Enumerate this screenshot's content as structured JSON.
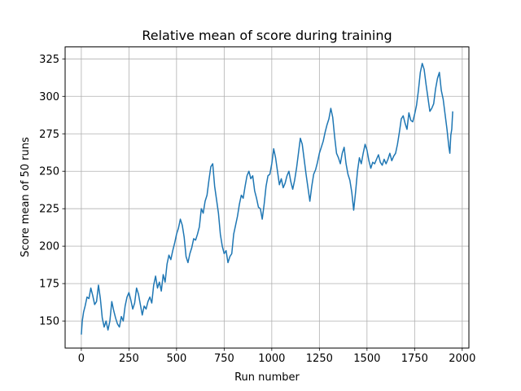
{
  "chart_data": {
    "type": "line",
    "title": "Relative mean of score during training",
    "xlabel": "Run number",
    "ylabel": "Score mean of 50 runs",
    "xlim": [
      -85,
      2035
    ],
    "ylim": [
      132,
      333
    ],
    "xticks": [
      0,
      250,
      500,
      750,
      1000,
      1250,
      1500,
      1750,
      2000
    ],
    "yticks": [
      150,
      175,
      200,
      225,
      250,
      275,
      300,
      325
    ],
    "grid": true,
    "colors": {
      "line": "#1f77b4",
      "grid": "#b0b0b0",
      "axis": "#000000"
    },
    "series": [
      {
        "points": [
          [
            0,
            141
          ],
          [
            5,
            150
          ],
          [
            12,
            156
          ],
          [
            20,
            160
          ],
          [
            30,
            166
          ],
          [
            40,
            165
          ],
          [
            50,
            172
          ],
          [
            60,
            167
          ],
          [
            70,
            161
          ],
          [
            80,
            163
          ],
          [
            90,
            174
          ],
          [
            100,
            165
          ],
          [
            110,
            152
          ],
          [
            120,
            146
          ],
          [
            130,
            150
          ],
          [
            140,
            144
          ],
          [
            150,
            150
          ],
          [
            160,
            163
          ],
          [
            170,
            157
          ],
          [
            180,
            152
          ],
          [
            190,
            148
          ],
          [
            200,
            146
          ],
          [
            210,
            153
          ],
          [
            220,
            150
          ],
          [
            230,
            160
          ],
          [
            240,
            166
          ],
          [
            250,
            169
          ],
          [
            260,
            164
          ],
          [
            270,
            158
          ],
          [
            280,
            162
          ],
          [
            290,
            172
          ],
          [
            300,
            168
          ],
          [
            310,
            161
          ],
          [
            320,
            154
          ],
          [
            330,
            160
          ],
          [
            340,
            158
          ],
          [
            350,
            163
          ],
          [
            360,
            166
          ],
          [
            370,
            162
          ],
          [
            380,
            174
          ],
          [
            390,
            180
          ],
          [
            400,
            172
          ],
          [
            410,
            176
          ],
          [
            420,
            170
          ],
          [
            430,
            181
          ],
          [
            440,
            176
          ],
          [
            450,
            188
          ],
          [
            460,
            194
          ],
          [
            470,
            191
          ],
          [
            480,
            197
          ],
          [
            490,
            202
          ],
          [
            500,
            208
          ],
          [
            510,
            212
          ],
          [
            520,
            218
          ],
          [
            530,
            214
          ],
          [
            540,
            206
          ],
          [
            550,
            193
          ],
          [
            560,
            189
          ],
          [
            570,
            195
          ],
          [
            580,
            199
          ],
          [
            590,
            205
          ],
          [
            600,
            204
          ],
          [
            610,
            208
          ],
          [
            620,
            213
          ],
          [
            630,
            225
          ],
          [
            640,
            222
          ],
          [
            650,
            230
          ],
          [
            660,
            234
          ],
          [
            670,
            244
          ],
          [
            680,
            253
          ],
          [
            690,
            255
          ],
          [
            700,
            240
          ],
          [
            710,
            231
          ],
          [
            720,
            222
          ],
          [
            730,
            208
          ],
          [
            740,
            200
          ],
          [
            750,
            195
          ],
          [
            760,
            197
          ],
          [
            770,
            189
          ],
          [
            780,
            193
          ],
          [
            790,
            195
          ],
          [
            800,
            208
          ],
          [
            810,
            214
          ],
          [
            820,
            220
          ],
          [
            830,
            228
          ],
          [
            840,
            234
          ],
          [
            850,
            232
          ],
          [
            860,
            240
          ],
          [
            870,
            247
          ],
          [
            880,
            250
          ],
          [
            890,
            245
          ],
          [
            900,
            247
          ],
          [
            910,
            237
          ],
          [
            920,
            232
          ],
          [
            930,
            226
          ],
          [
            940,
            225
          ],
          [
            950,
            218
          ],
          [
            960,
            228
          ],
          [
            970,
            240
          ],
          [
            980,
            247
          ],
          [
            990,
            248
          ],
          [
            1000,
            255
          ],
          [
            1010,
            265
          ],
          [
            1020,
            259
          ],
          [
            1030,
            250
          ],
          [
            1040,
            241
          ],
          [
            1050,
            245
          ],
          [
            1060,
            239
          ],
          [
            1070,
            242
          ],
          [
            1080,
            247
          ],
          [
            1090,
            250
          ],
          [
            1100,
            243
          ],
          [
            1110,
            238
          ],
          [
            1120,
            244
          ],
          [
            1130,
            252
          ],
          [
            1140,
            262
          ],
          [
            1150,
            272
          ],
          [
            1160,
            268
          ],
          [
            1170,
            258
          ],
          [
            1180,
            248
          ],
          [
            1190,
            239
          ],
          [
            1200,
            230
          ],
          [
            1210,
            240
          ],
          [
            1220,
            248
          ],
          [
            1230,
            251
          ],
          [
            1240,
            256
          ],
          [
            1250,
            262
          ],
          [
            1260,
            266
          ],
          [
            1270,
            270
          ],
          [
            1280,
            276
          ],
          [
            1290,
            281
          ],
          [
            1300,
            285
          ],
          [
            1310,
            292
          ],
          [
            1320,
            286
          ],
          [
            1330,
            273
          ],
          [
            1340,
            262
          ],
          [
            1350,
            259
          ],
          [
            1360,
            255
          ],
          [
            1370,
            262
          ],
          [
            1380,
            266
          ],
          [
            1390,
            255
          ],
          [
            1400,
            248
          ],
          [
            1410,
            244
          ],
          [
            1420,
            236
          ],
          [
            1430,
            224
          ],
          [
            1440,
            236
          ],
          [
            1450,
            250
          ],
          [
            1460,
            259
          ],
          [
            1470,
            255
          ],
          [
            1480,
            262
          ],
          [
            1490,
            268
          ],
          [
            1500,
            264
          ],
          [
            1510,
            257
          ],
          [
            1520,
            252
          ],
          [
            1530,
            256
          ],
          [
            1540,
            255
          ],
          [
            1550,
            258
          ],
          [
            1560,
            261
          ],
          [
            1570,
            256
          ],
          [
            1580,
            254
          ],
          [
            1590,
            258
          ],
          [
            1600,
            255
          ],
          [
            1610,
            258
          ],
          [
            1620,
            262
          ],
          [
            1630,
            257
          ],
          [
            1640,
            260
          ],
          [
            1650,
            262
          ],
          [
            1660,
            268
          ],
          [
            1670,
            276
          ],
          [
            1680,
            285
          ],
          [
            1690,
            287
          ],
          [
            1700,
            282
          ],
          [
            1710,
            278
          ],
          [
            1720,
            289
          ],
          [
            1730,
            284
          ],
          [
            1740,
            283
          ],
          [
            1750,
            288
          ],
          [
            1760,
            294
          ],
          [
            1770,
            304
          ],
          [
            1780,
            316
          ],
          [
            1790,
            322
          ],
          [
            1800,
            318
          ],
          [
            1810,
            308
          ],
          [
            1820,
            299
          ],
          [
            1830,
            290
          ],
          [
            1840,
            292
          ],
          [
            1850,
            295
          ],
          [
            1860,
            305
          ],
          [
            1870,
            312
          ],
          [
            1880,
            316
          ],
          [
            1890,
            304
          ],
          [
            1900,
            298
          ],
          [
            1910,
            288
          ],
          [
            1920,
            278
          ],
          [
            1930,
            266
          ],
          [
            1935,
            262
          ],
          [
            1940,
            274
          ],
          [
            1945,
            278
          ],
          [
            1950,
            290
          ]
        ]
      }
    ]
  }
}
